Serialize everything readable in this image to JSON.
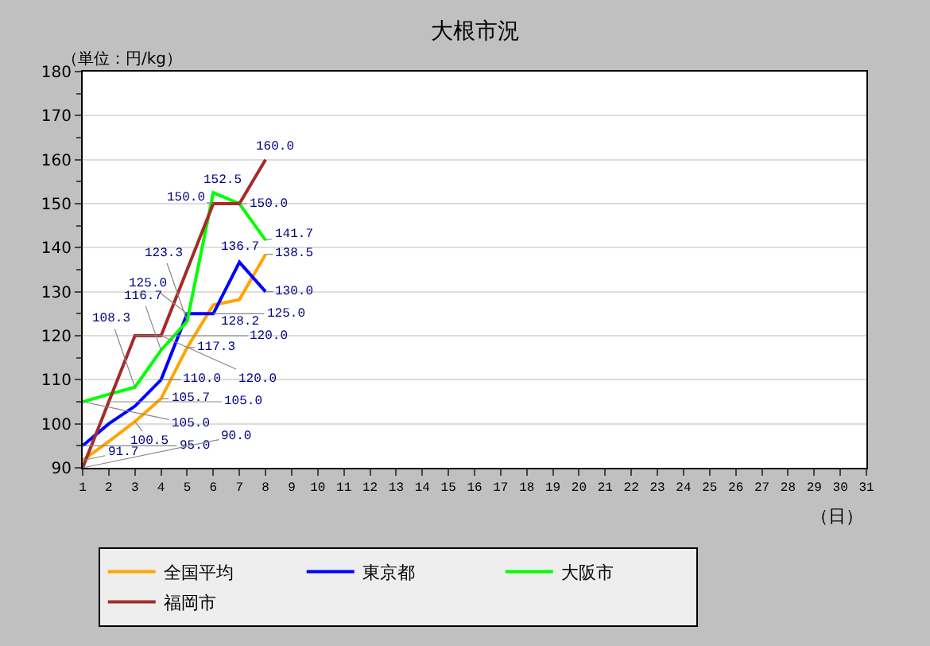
{
  "chart_data": {
    "type": "line",
    "title": "大根市況",
    "xlabel": "（日）",
    "annotations": [
      "（単位：円/kg）"
    ],
    "x": [
      1,
      2,
      3,
      4,
      5,
      6,
      7,
      8
    ],
    "xlim": [
      1,
      31
    ],
    "xticks": [
      1,
      2,
      3,
      4,
      5,
      6,
      7,
      8,
      9,
      10,
      11,
      12,
      13,
      14,
      15,
      16,
      17,
      18,
      19,
      20,
      21,
      22,
      23,
      24,
      25,
      26,
      27,
      28,
      29,
      30,
      31
    ],
    "ylim": [
      90,
      180
    ],
    "yticks": [
      90,
      100,
      110,
      120,
      130,
      140,
      150,
      160,
      170,
      180
    ],
    "grid": "y",
    "legend": "bottom",
    "marker": "none",
    "line_style": "solid",
    "series": [
      {
        "name": "全国平均",
        "color": "#ffa500",
        "values": [
          91.7,
          96.0,
          100.5,
          105.7,
          117.3,
          127.0,
          128.2,
          138.5
        ],
        "value_labels": [
          "91.7",
          null,
          "100.5",
          "105.7",
          "117.3",
          null,
          "128.2",
          "138.5"
        ]
      },
      {
        "name": "東京都",
        "color": "#0000ff",
        "values": [
          95.0,
          100.0,
          104.0,
          110.0,
          125.0,
          125.0,
          136.7,
          130.0
        ],
        "value_labels": [
          "95.0",
          null,
          null,
          "110.0",
          "125.0",
          "125.0",
          "136.7",
          "130.0"
        ]
      },
      {
        "name": "大阪市",
        "color": "#00ff00",
        "values": [
          105.0,
          106.7,
          108.3,
          116.7,
          123.3,
          152.5,
          150.0,
          141.7
        ],
        "value_labels": [
          "105.0",
          null,
          "108.3",
          "116.7",
          "123.3",
          "152.5",
          "150.0",
          "141.7"
        ]
      },
      {
        "name": "福岡市",
        "color": "#a52a2a",
        "values": [
          90.0,
          105.0,
          120.0,
          120.0,
          135.0,
          150.0,
          150.0,
          160.0
        ],
        "value_labels": [
          "90.0",
          "105.0",
          "120.0",
          "120.0",
          null,
          "150.0",
          null,
          "160.0"
        ]
      }
    ]
  }
}
